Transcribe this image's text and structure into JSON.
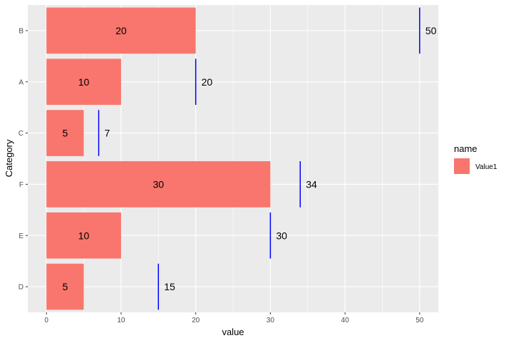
{
  "chart_data": {
    "type": "bar",
    "orientation": "horizontal",
    "categories": [
      "D",
      "E",
      "F",
      "C",
      "A",
      "B"
    ],
    "series": [
      {
        "name": "Value1",
        "values": [
          5,
          10,
          30,
          5,
          10,
          20
        ],
        "color": "#F8766D"
      }
    ],
    "markers": {
      "type": "vertical-segment",
      "color": "#0000FF",
      "values": [
        15,
        30,
        34,
        7,
        20,
        50
      ]
    },
    "xlabel": "value",
    "ylabel": "Category",
    "xlim": [
      -2.5,
      52.5
    ],
    "xticks": [
      0,
      10,
      20,
      30,
      40,
      50
    ],
    "xtick_labels": [
      "0",
      "10",
      "20",
      "30",
      "40",
      "50"
    ],
    "grid": true,
    "legend": {
      "title": "name",
      "position": "right",
      "entries": [
        "Value1"
      ]
    },
    "panel_background": "#EBEBEB"
  }
}
